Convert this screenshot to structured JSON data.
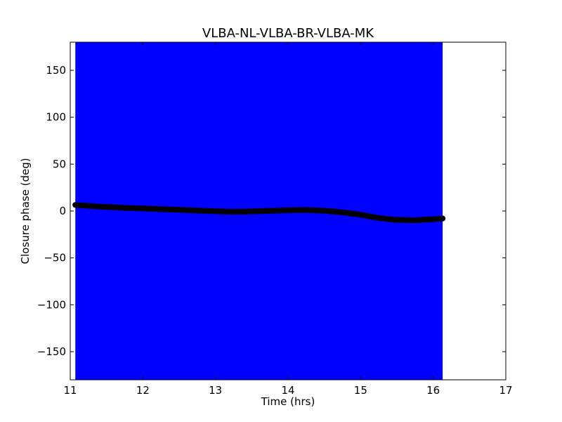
{
  "chart_data": {
    "type": "scatter",
    "title": "VLBA-NL-VLBA-BR-VLBA-MK",
    "xlabel": "Time (hrs)",
    "ylabel": "Closure phase (deg)",
    "xlim": [
      11,
      17
    ],
    "ylim": [
      -180,
      180
    ],
    "x_ticks": [
      11,
      12,
      13,
      14,
      15,
      16,
      17
    ],
    "y_ticks": [
      -150,
      -100,
      -50,
      0,
      50,
      100,
      150
    ],
    "x_tick_labels": [
      "11",
      "12",
      "13",
      "14",
      "15",
      "16",
      "17"
    ],
    "y_tick_labels": [
      "−150",
      "−100",
      "−50",
      "0",
      "50",
      "100",
      "150"
    ],
    "grid": false,
    "colors": {
      "errorband": "#0000ff",
      "points": "#000000"
    },
    "errorband": {
      "x_start": 11.07,
      "x_end": 16.13,
      "y_low": -180,
      "y_high": 180
    },
    "series": [
      {
        "x": [
          11.07,
          11.3,
          11.5,
          11.75,
          12.0,
          12.25,
          12.5,
          12.75,
          13.0,
          13.25,
          13.5,
          13.75,
          14.0,
          14.25,
          14.5,
          14.75,
          15.0,
          15.25,
          15.5,
          15.75,
          16.0,
          16.13
        ],
        "y": [
          6.5,
          5.2,
          4.3,
          3.4,
          2.7,
          2.0,
          1.2,
          0.5,
          -0.3,
          -0.8,
          -0.5,
          0.2,
          0.8,
          1.0,
          0.3,
          -1.5,
          -4.0,
          -7.5,
          -9.5,
          -9.8,
          -8.8,
          -8.0
        ]
      }
    ]
  }
}
